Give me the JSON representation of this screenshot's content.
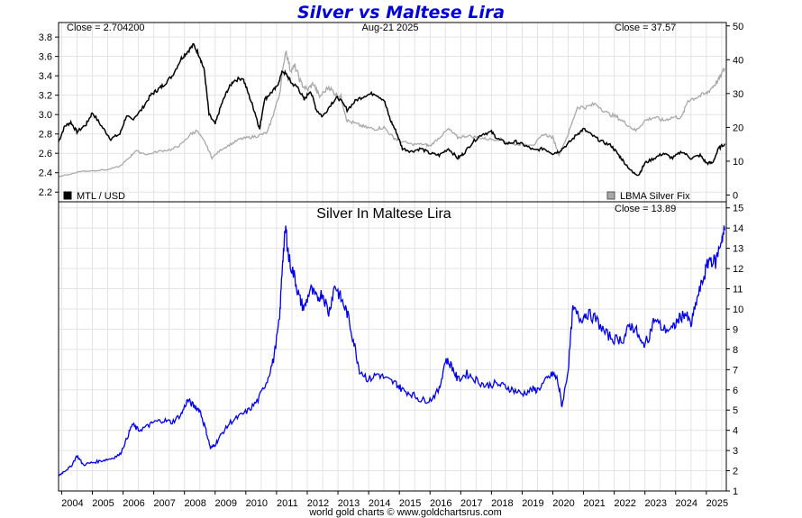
{
  "title": "Silver vs Maltese Lira",
  "footer": "world gold charts © www.goldchartsrus.com",
  "colors": {
    "title": "#0000dd",
    "mtl": "#000000",
    "silver": "#a9a9a9",
    "silver_mtl": "#0000ee"
  },
  "chart_data": [
    {
      "type": "line",
      "panel": "top",
      "date_label": "Aug-21  2025",
      "close_left": "Close = 2.704200",
      "close_right": "Close = 37.57",
      "legend": "bottom",
      "grid": true,
      "x_range": [
        2003.9,
        2025.65
      ],
      "x_ticks": [
        "2004",
        "2005",
        "2006",
        "2007",
        "2008",
        "2009",
        "2010",
        "2011",
        "2012",
        "2013",
        "2014",
        "2015",
        "2016",
        "2017",
        "2018",
        "2019",
        "2020",
        "2021",
        "2022",
        "2023",
        "2024",
        "2025"
      ],
      "left_axis": {
        "ylim": [
          2.1,
          3.95
        ],
        "ticks": [
          "2.2",
          "2.4",
          "2.6",
          "2.8",
          "3.0",
          "3.2",
          "3.4",
          "3.6",
          "3.8"
        ]
      },
      "right_axis": {
        "ylim": [
          -2,
          51
        ],
        "ticks": [
          "0",
          "10",
          "20",
          "30",
          "40",
          "50"
        ]
      },
      "series": [
        {
          "name": "MTL / USD",
          "axis": "left",
          "x": [
            2003.9,
            2004.1,
            2004.3,
            2004.5,
            2004.8,
            2005.0,
            2005.3,
            2005.6,
            2005.9,
            2006.1,
            2006.3,
            2006.6,
            2006.9,
            2007.1,
            2007.3,
            2007.6,
            2007.9,
            2008.1,
            2008.3,
            2008.5,
            2008.65,
            2008.8,
            2009.0,
            2009.2,
            2009.4,
            2009.6,
            2009.9,
            2010.1,
            2010.3,
            2010.45,
            2010.6,
            2010.8,
            2011.0,
            2011.2,
            2011.35,
            2011.5,
            2011.7,
            2011.9,
            2012.1,
            2012.3,
            2012.5,
            2012.8,
            2013.0,
            2013.3,
            2013.6,
            2013.9,
            2014.2,
            2014.5,
            2014.7,
            2014.9,
            2015.1,
            2015.4,
            2015.7,
            2016.0,
            2016.3,
            2016.6,
            2016.9,
            2017.1,
            2017.4,
            2017.7,
            2018.0,
            2018.2,
            2018.5,
            2018.8,
            2019.1,
            2019.4,
            2019.7,
            2020.0,
            2020.2,
            2020.5,
            2020.8,
            2021.0,
            2021.3,
            2021.6,
            2021.9,
            2022.1,
            2022.3,
            2022.6,
            2022.8,
            2023.0,
            2023.3,
            2023.6,
            2023.9,
            2024.2,
            2024.5,
            2024.8,
            2025.0,
            2025.2,
            2025.4,
            2025.6
          ],
          "values": [
            2.72,
            2.88,
            2.92,
            2.82,
            2.9,
            3.02,
            2.88,
            2.75,
            2.8,
            2.98,
            2.95,
            3.05,
            3.2,
            3.25,
            3.3,
            3.4,
            3.58,
            3.65,
            3.72,
            3.6,
            3.45,
            3.0,
            2.9,
            3.1,
            3.25,
            3.35,
            3.38,
            3.2,
            3.02,
            2.85,
            3.15,
            3.22,
            3.28,
            3.45,
            3.4,
            3.32,
            3.28,
            3.15,
            3.25,
            3.05,
            2.98,
            3.12,
            3.18,
            3.05,
            3.15,
            3.2,
            3.22,
            3.15,
            2.95,
            2.82,
            2.65,
            2.62,
            2.65,
            2.6,
            2.58,
            2.65,
            2.55,
            2.6,
            2.72,
            2.8,
            2.82,
            2.75,
            2.7,
            2.72,
            2.68,
            2.63,
            2.65,
            2.6,
            2.62,
            2.7,
            2.8,
            2.85,
            2.78,
            2.72,
            2.68,
            2.6,
            2.52,
            2.4,
            2.38,
            2.5,
            2.55,
            2.6,
            2.55,
            2.62,
            2.55,
            2.58,
            2.5,
            2.5,
            2.65,
            2.7
          ]
        },
        {
          "name": "LBMA Silver Fix",
          "axis": "right",
          "x": [
            2003.9,
            2004.3,
            2004.6,
            2005.0,
            2005.5,
            2005.9,
            2006.2,
            2006.4,
            2006.8,
            2007.2,
            2007.6,
            2007.9,
            2008.2,
            2008.4,
            2008.7,
            2008.9,
            2009.2,
            2009.5,
            2009.8,
            2010.1,
            2010.4,
            2010.7,
            2010.9,
            2011.1,
            2011.3,
            2011.45,
            2011.6,
            2011.8,
            2012.0,
            2012.2,
            2012.4,
            2012.7,
            2012.9,
            2013.1,
            2013.3,
            2013.6,
            2013.9,
            2014.2,
            2014.5,
            2014.8,
            2015.0,
            2015.4,
            2015.8,
            2016.0,
            2016.3,
            2016.6,
            2016.9,
            2017.2,
            2017.6,
            2017.9,
            2018.3,
            2018.7,
            2019.0,
            2019.4,
            2019.7,
            2020.0,
            2020.2,
            2020.5,
            2020.8,
            2021.1,
            2021.4,
            2021.8,
            2022.1,
            2022.4,
            2022.7,
            2023.0,
            2023.3,
            2023.6,
            2023.9,
            2024.2,
            2024.4,
            2024.7,
            2025.0,
            2025.2,
            2025.4,
            2025.6
          ],
          "values": [
            5.5,
            6.2,
            7.0,
            7.2,
            7.5,
            8.5,
            11,
            13,
            12,
            13,
            13.5,
            15,
            18,
            19,
            15,
            11,
            13.5,
            15,
            16.5,
            17,
            17.5,
            18.5,
            24,
            30,
            43,
            37,
            38,
            33,
            31,
            33,
            29,
            32,
            30,
            29,
            22,
            21,
            20,
            19.5,
            20,
            17,
            16,
            15,
            15,
            14.5,
            17,
            19.5,
            17,
            17.5,
            17,
            16.5,
            16.5,
            15,
            15,
            15,
            18,
            17,
            12,
            18,
            26,
            26,
            27,
            24,
            23,
            21,
            19,
            22,
            23,
            22,
            23,
            23,
            28,
            29,
            30,
            32,
            34,
            37.5
          ]
        }
      ]
    },
    {
      "type": "line",
      "panel": "bottom",
      "title": "Silver In Maltese Lira",
      "close": "Close = 13.89",
      "grid": true,
      "x_range": [
        2003.9,
        2025.65
      ],
      "ylim": [
        1,
        15.3
      ],
      "y_ticks": [
        "1",
        "2",
        "3",
        "4",
        "5",
        "6",
        "7",
        "8",
        "9",
        "10",
        "11",
        "12",
        "13",
        "14",
        "15"
      ],
      "series": [
        {
          "name": "Silver In Maltese Lira",
          "x": [
            2003.9,
            2004.1,
            2004.3,
            2004.5,
            2004.7,
            2005.0,
            2005.3,
            2005.6,
            2005.9,
            2006.1,
            2006.3,
            2006.5,
            2006.8,
            2007.0,
            2007.3,
            2007.6,
            2007.9,
            2008.1,
            2008.3,
            2008.5,
            2008.7,
            2008.85,
            2009.0,
            2009.2,
            2009.5,
            2009.8,
            2010.1,
            2010.4,
            2010.7,
            2010.9,
            2011.1,
            2011.2,
            2011.3,
            2011.4,
            2011.6,
            2011.75,
            2011.9,
            2012.1,
            2012.3,
            2012.5,
            2012.7,
            2012.9,
            2013.1,
            2013.3,
            2013.5,
            2013.7,
            2014.0,
            2014.3,
            2014.6,
            2014.9,
            2015.1,
            2015.4,
            2015.7,
            2016.0,
            2016.3,
            2016.5,
            2016.7,
            2016.9,
            2017.2,
            2017.5,
            2017.8,
            2018.1,
            2018.4,
            2018.7,
            2019.0,
            2019.3,
            2019.5,
            2019.8,
            2020.0,
            2020.15,
            2020.3,
            2020.5,
            2020.65,
            2020.9,
            2021.1,
            2021.4,
            2021.7,
            2022.0,
            2022.3,
            2022.5,
            2022.7,
            2022.9,
            2023.1,
            2023.3,
            2023.6,
            2023.9,
            2024.1,
            2024.3,
            2024.5,
            2024.7,
            2024.9,
            2025.1,
            2025.3,
            2025.5,
            2025.6
          ],
          "values": [
            1.75,
            2.0,
            2.2,
            2.75,
            2.3,
            2.4,
            2.5,
            2.6,
            2.8,
            3.5,
            4.3,
            4.0,
            4.2,
            4.4,
            4.5,
            4.4,
            4.8,
            5.5,
            5.2,
            5.0,
            4.0,
            3.1,
            3.3,
            3.8,
            4.4,
            4.7,
            5.0,
            5.5,
            6.5,
            7.5,
            9.5,
            12.5,
            14.0,
            12.5,
            11.5,
            10.5,
            10.0,
            11.0,
            10.5,
            10.8,
            9.8,
            11.2,
            10.5,
            9.8,
            8.5,
            7.0,
            6.5,
            6.8,
            6.5,
            6.3,
            6.0,
            5.8,
            5.5,
            5.5,
            6.0,
            7.5,
            7.2,
            6.5,
            6.8,
            6.5,
            6.2,
            6.3,
            6.2,
            6.0,
            5.8,
            6.0,
            6.0,
            6.5,
            6.8,
            6.5,
            5.2,
            7.0,
            10.0,
            9.5,
            9.8,
            9.5,
            8.8,
            8.5,
            8.5,
            9.2,
            9.0,
            8.2,
            8.5,
            9.5,
            9.0,
            9.0,
            9.5,
            9.8,
            9.2,
            10.5,
            11.5,
            12.5,
            12.3,
            13.5,
            13.9
          ]
        }
      ]
    }
  ]
}
